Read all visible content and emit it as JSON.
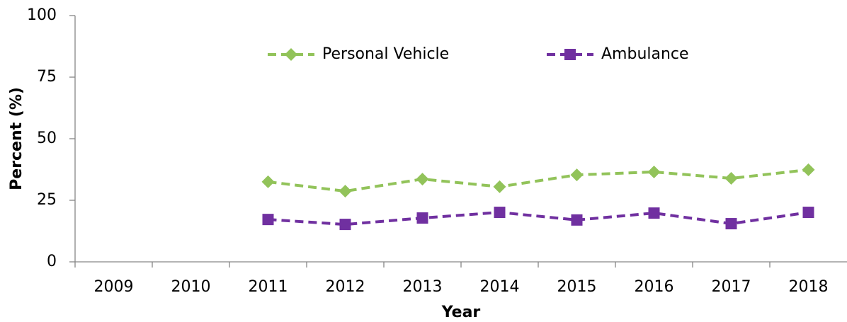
{
  "chart_data": {
    "type": "line",
    "x_label": "Year",
    "y_label": "Percent (%)",
    "categories": [
      "2009",
      "2010",
      "2011",
      "2012",
      "2013",
      "2014",
      "2015",
      "2016",
      "2017",
      "2018"
    ],
    "series": [
      {
        "name": "Personal Vehicle",
        "color": "#92c35a",
        "marker": "diamond",
        "values": [
          null,
          null,
          32.5,
          28.7,
          33.6,
          30.5,
          35.3,
          36.5,
          33.9,
          37.4
        ]
      },
      {
        "name": "Ambulance",
        "color": "#7030a0",
        "marker": "square",
        "values": [
          null,
          null,
          17.2,
          15.2,
          17.8,
          20.1,
          17.0,
          19.8,
          15.5,
          20.1
        ]
      }
    ],
    "ylim": [
      0,
      100
    ],
    "yticks": [
      0,
      25,
      50,
      75,
      100
    ],
    "grid": false
  }
}
